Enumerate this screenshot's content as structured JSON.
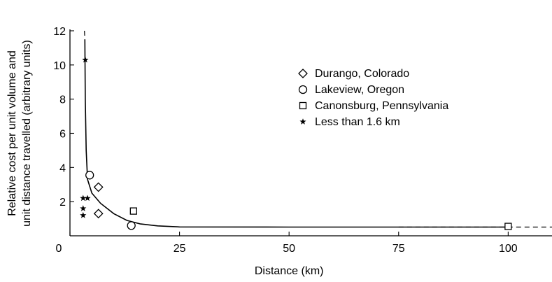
{
  "chart_data": {
    "type": "scatter",
    "xlabel": "Distance (km)",
    "ylabel_lines": [
      "Relative cost per unit volume and",
      "unit distance travelled (arbitrary units)"
    ],
    "xlim": [
      0,
      110
    ],
    "ylim": [
      0,
      12
    ],
    "x_ticks": [
      0,
      25,
      50,
      75,
      100
    ],
    "y_ticks": [
      0,
      2,
      4,
      6,
      8,
      10,
      12
    ],
    "grid": false,
    "legend_position": "top-right",
    "series": [
      {
        "name": "Durango, Colorado",
        "marker": "diamond",
        "points": [
          [
            6.5,
            2.85
          ],
          [
            6.5,
            1.3
          ]
        ]
      },
      {
        "name": "Lakeview, Oregon",
        "marker": "circle",
        "points": [
          [
            4.5,
            3.55
          ],
          [
            14,
            0.6
          ]
        ]
      },
      {
        "name": "Canonsburg, Pennsylvania",
        "marker": "square",
        "points": [
          [
            14.5,
            1.45
          ],
          [
            100,
            0.55
          ]
        ]
      },
      {
        "name": "Less than 1.6 km",
        "marker": "star",
        "points": [
          [
            3.5,
            10.3
          ],
          [
            3,
            2.2
          ],
          [
            4,
            2.2
          ],
          [
            3,
            1.6
          ],
          [
            3,
            1.2
          ]
        ]
      }
    ],
    "fitted_curve": {
      "style": "solid",
      "points": [
        [
          3.4,
          11.5
        ],
        [
          3.5,
          8
        ],
        [
          3.7,
          5
        ],
        [
          4,
          3.3
        ],
        [
          5,
          2.5
        ],
        [
          7,
          1.9
        ],
        [
          10,
          1.3
        ],
        [
          13,
          0.9
        ],
        [
          16,
          0.7
        ],
        [
          20,
          0.58
        ],
        [
          25,
          0.52
        ],
        [
          50,
          0.51
        ],
        [
          75,
          0.51
        ],
        [
          100,
          0.51
        ]
      ]
    },
    "dashed_extensions": [
      {
        "points": [
          [
            3.3,
            12
          ],
          [
            3.4,
            11.5
          ]
        ]
      },
      {
        "points": [
          [
            75,
            0.51
          ],
          [
            110,
            0.51
          ]
        ]
      }
    ]
  }
}
